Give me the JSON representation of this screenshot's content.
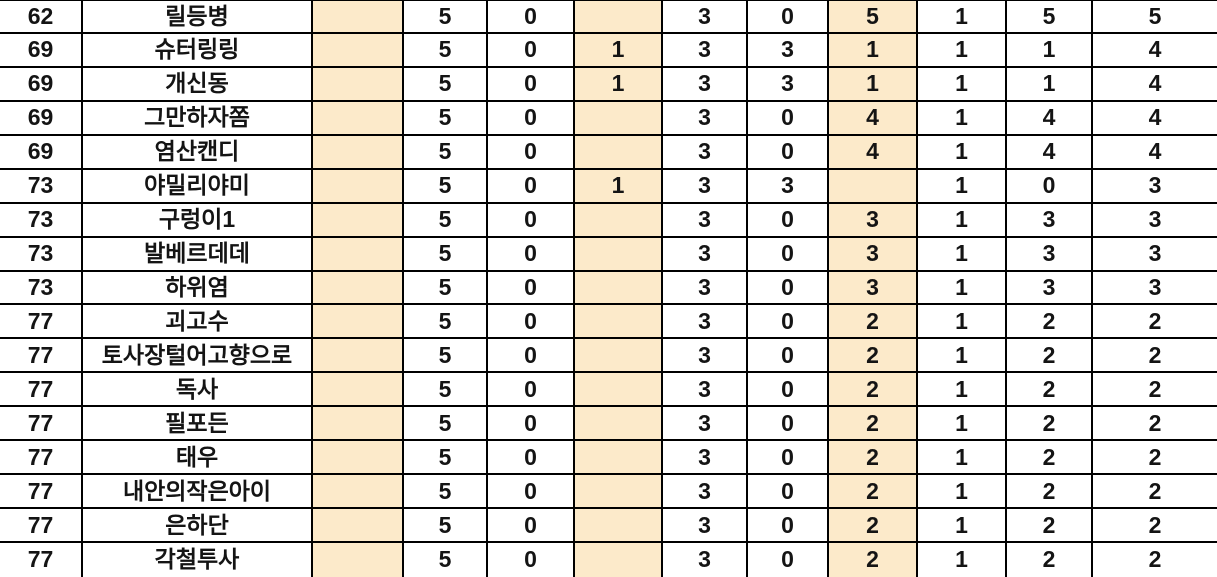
{
  "app": {
    "type": "spreadsheet-ranking-table",
    "header_visible": false
  },
  "colors": {
    "background": "#FFFFFF",
    "grid_line": "#000000",
    "text": "#141414",
    "highlight_fill": "#FCEACA"
  },
  "table": {
    "columns": [
      {
        "id": "rank",
        "highlighted": false
      },
      {
        "id": "name",
        "highlighted": false
      },
      {
        "id": "col3",
        "highlighted": true
      },
      {
        "id": "col4",
        "highlighted": false
      },
      {
        "id": "col5",
        "highlighted": false
      },
      {
        "id": "col6",
        "highlighted": true
      },
      {
        "id": "col7",
        "highlighted": false
      },
      {
        "id": "col8",
        "highlighted": false
      },
      {
        "id": "col9",
        "highlighted": true
      },
      {
        "id": "col10",
        "highlighted": false
      },
      {
        "id": "col11",
        "highlighted": false
      },
      {
        "id": "col12",
        "highlighted": false
      }
    ],
    "rows": [
      [
        "62",
        "릴등병",
        "",
        "5",
        "0",
        "",
        "3",
        "0",
        "5",
        "1",
        "5",
        "5"
      ],
      [
        "69",
        "슈터링링",
        "",
        "5",
        "0",
        "1",
        "3",
        "3",
        "1",
        "1",
        "1",
        "4"
      ],
      [
        "69",
        "개신동",
        "",
        "5",
        "0",
        "1",
        "3",
        "3",
        "1",
        "1",
        "1",
        "4"
      ],
      [
        "69",
        "그만하자쫌",
        "",
        "5",
        "0",
        "",
        "3",
        "0",
        "4",
        "1",
        "4",
        "4"
      ],
      [
        "69",
        "염산캔디",
        "",
        "5",
        "0",
        "",
        "3",
        "0",
        "4",
        "1",
        "4",
        "4"
      ],
      [
        "73",
        "야밀리야미",
        "",
        "5",
        "0",
        "1",
        "3",
        "3",
        "",
        "1",
        "0",
        "3"
      ],
      [
        "73",
        "구렁이1",
        "",
        "5",
        "0",
        "",
        "3",
        "0",
        "3",
        "1",
        "3",
        "3"
      ],
      [
        "73",
        "발베르데데",
        "",
        "5",
        "0",
        "",
        "3",
        "0",
        "3",
        "1",
        "3",
        "3"
      ],
      [
        "73",
        "하위염",
        "",
        "5",
        "0",
        "",
        "3",
        "0",
        "3",
        "1",
        "3",
        "3"
      ],
      [
        "77",
        "괴고수",
        "",
        "5",
        "0",
        "",
        "3",
        "0",
        "2",
        "1",
        "2",
        "2"
      ],
      [
        "77",
        "토사장털어고향으로",
        "",
        "5",
        "0",
        "",
        "3",
        "0",
        "2",
        "1",
        "2",
        "2"
      ],
      [
        "77",
        "독사",
        "",
        "5",
        "0",
        "",
        "3",
        "0",
        "2",
        "1",
        "2",
        "2"
      ],
      [
        "77",
        "필포든",
        "",
        "5",
        "0",
        "",
        "3",
        "0",
        "2",
        "1",
        "2",
        "2"
      ],
      [
        "77",
        "태우",
        "",
        "5",
        "0",
        "",
        "3",
        "0",
        "2",
        "1",
        "2",
        "2"
      ],
      [
        "77",
        "내안의작은아이",
        "",
        "5",
        "0",
        "",
        "3",
        "0",
        "2",
        "1",
        "2",
        "2"
      ],
      [
        "77",
        "은하단",
        "",
        "5",
        "0",
        "",
        "3",
        "0",
        "2",
        "1",
        "2",
        "2"
      ],
      [
        "77",
        "각철투사",
        "",
        "5",
        "0",
        "",
        "3",
        "0",
        "2",
        "1",
        "2",
        "2"
      ]
    ]
  }
}
